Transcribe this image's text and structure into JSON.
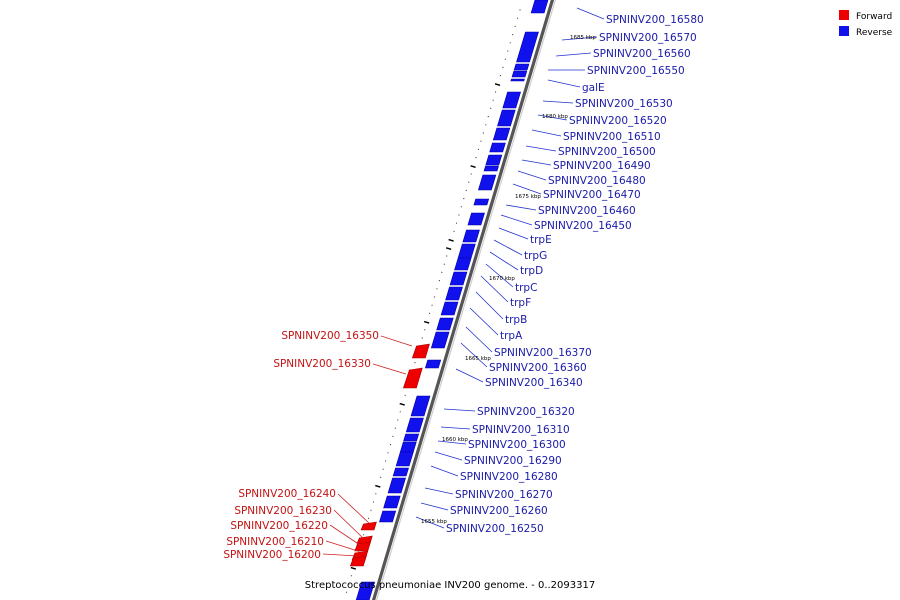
{
  "caption": "Streptococcus pneumoniae INV200 genome. - 0..2093317",
  "legend": [
    {
      "label": "Forward",
      "color": "#ee0000"
    },
    {
      "label": "Reverse",
      "color": "#1111ee"
    }
  ],
  "colors": {
    "forward": "#ee0000",
    "reverse": "#1111ee",
    "backbone": "#777777"
  },
  "kbp_marks": [
    "1685 kbp",
    "1680 kbp",
    "1675 kbp",
    "1670 kbp",
    "1665 kbp",
    "1660 kbp",
    "1655 kbp"
  ],
  "reverse_genes": [
    "SPNINV200_16580",
    "SPNINV200_16570",
    "SPNINV200_16560",
    "SPNINV200_16550",
    "galE",
    "SPNINV200_16530",
    "SPNINV200_16520",
    "SPNINV200_16510",
    "SPNINV200_16500",
    "SPNINV200_16490",
    "SPNINV200_16480",
    "SPNINV200_16470",
    "SPNINV200_16460",
    "SPNINV200_16450",
    "trpE",
    "trpG",
    "trpD",
    "trpC",
    "trpF",
    "trpB",
    "trpA",
    "SPNINV200_16370",
    "SPNINV200_16360",
    "SPNINV200_16340",
    "SPNINV200_16320",
    "SPNINV200_16310",
    "SPNINV200_16300",
    "SPNINV200_16290",
    "SPNINV200_16280",
    "SPNINV200_16270",
    "SPNINV200_16260",
    "SPNINV200_16250"
  ],
  "forward_genes": [
    "SPNINV200_16350",
    "SPNINV200_16330",
    "SPNINV200_16240",
    "SPNINV200_16230",
    "SPNINV200_16220",
    "SPNINV200_16210",
    "SPNINV200_16200"
  ]
}
